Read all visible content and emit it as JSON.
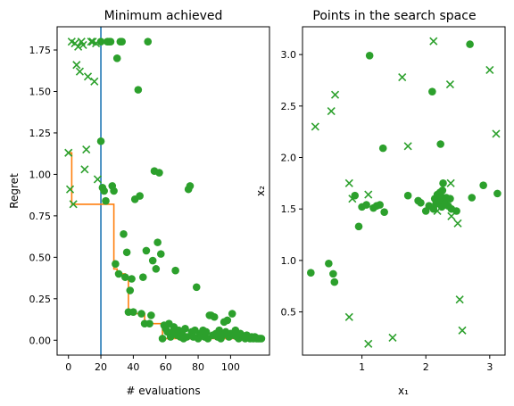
{
  "chart_data": [
    {
      "type": "scatter",
      "title": "Minimum achieved",
      "xlabel": "# evaluations",
      "ylabel": "Regret",
      "xlim": [
        -7,
        124
      ],
      "ylim": [
        -0.09,
        1.89
      ],
      "xticks": [
        0,
        20,
        40,
        60,
        80,
        100
      ],
      "yticks": [
        0.0,
        0.25,
        0.5,
        0.75,
        1.0,
        1.25,
        1.5,
        1.75
      ],
      "ytick_labels": [
        "0.00",
        "0.25",
        "0.50",
        "0.75",
        "1.00",
        "1.25",
        "1.50",
        "1.75"
      ],
      "vline_x": 20,
      "vline_color": "#1f77b4",
      "point_color": "#2ca02c",
      "line_color": "#ff7f0e",
      "min_curve": [
        [
          0,
          1.13
        ],
        [
          2,
          1.13
        ],
        [
          2,
          0.82
        ],
        [
          28,
          0.82
        ],
        [
          28,
          0.43
        ],
        [
          30,
          0.43
        ],
        [
          30,
          0.4
        ],
        [
          35,
          0.4
        ],
        [
          35,
          0.37
        ],
        [
          37,
          0.37
        ],
        [
          37,
          0.16
        ],
        [
          47,
          0.16
        ],
        [
          47,
          0.1
        ],
        [
          58,
          0.1
        ],
        [
          58,
          0.01
        ],
        [
          120,
          0.01
        ]
      ],
      "cross_points": [
        [
          0,
          1.13
        ],
        [
          1,
          0.91
        ],
        [
          2,
          1.8
        ],
        [
          3,
          0.82
        ],
        [
          4,
          1.79
        ],
        [
          5,
          1.66
        ],
        [
          6,
          1.77
        ],
        [
          7,
          1.62
        ],
        [
          8,
          1.8
        ],
        [
          9,
          1.78
        ],
        [
          10,
          1.03
        ],
        [
          11,
          1.15
        ],
        [
          12,
          1.59
        ],
        [
          14,
          1.8
        ],
        [
          15,
          1.8
        ],
        [
          16,
          1.56
        ],
        [
          17,
          1.79
        ],
        [
          18,
          0.97
        ]
      ],
      "dot_points": [
        [
          20,
          1.8
        ],
        [
          20,
          1.2
        ],
        [
          21,
          0.92
        ],
        [
          22,
          0.9
        ],
        [
          23,
          0.84
        ],
        [
          24,
          1.8
        ],
        [
          25,
          1.8
        ],
        [
          26,
          1.8
        ],
        [
          27,
          0.93
        ],
        [
          28,
          0.9
        ],
        [
          29,
          0.46
        ],
        [
          30,
          1.7
        ],
        [
          31,
          0.4
        ],
        [
          32,
          1.8
        ],
        [
          33,
          1.8
        ],
        [
          34,
          0.64
        ],
        [
          35,
          0.38
        ],
        [
          36,
          0.53
        ],
        [
          37,
          0.17
        ],
        [
          38,
          0.3
        ],
        [
          39,
          0.37
        ],
        [
          40,
          0.17
        ],
        [
          41,
          0.85
        ],
        [
          43,
          1.51
        ],
        [
          44,
          0.87
        ],
        [
          45,
          0.16
        ],
        [
          46,
          0.38
        ],
        [
          47,
          0.1
        ],
        [
          48,
          0.54
        ],
        [
          49,
          1.8
        ],
        [
          50,
          0.1
        ],
        [
          51,
          0.15
        ],
        [
          52,
          0.48
        ],
        [
          53,
          1.02
        ],
        [
          54,
          0.43
        ],
        [
          55,
          0.59
        ],
        [
          56,
          1.01
        ],
        [
          57,
          0.52
        ],
        [
          58,
          0.01
        ],
        [
          59,
          0.09
        ],
        [
          60,
          0.07
        ],
        [
          61,
          0.05
        ],
        [
          62,
          0.1
        ],
        [
          63,
          0.02
        ],
        [
          64,
          0.05
        ],
        [
          65,
          0.08
        ],
        [
          66,
          0.42
        ],
        [
          67,
          0.03
        ],
        [
          68,
          0.06
        ],
        [
          69,
          0.02
        ],
        [
          70,
          0.04
        ],
        [
          71,
          0.01
        ],
        [
          72,
          0.07
        ],
        [
          73,
          0.02
        ],
        [
          74,
          0.91
        ],
        [
          75,
          0.93
        ],
        [
          76,
          0.05
        ],
        [
          77,
          0.02
        ],
        [
          78,
          0.06
        ],
        [
          79,
          0.32
        ],
        [
          80,
          0.01
        ],
        [
          81,
          0.04
        ],
        [
          82,
          0.03
        ],
        [
          83,
          0.06
        ],
        [
          84,
          0.02
        ],
        [
          85,
          0.05
        ],
        [
          86,
          0.01
        ],
        [
          87,
          0.15
        ],
        [
          88,
          0.15
        ],
        [
          89,
          0.03
        ],
        [
          90,
          0.14
        ],
        [
          91,
          0.04
        ],
        [
          92,
          0.02
        ],
        [
          93,
          0.06
        ],
        [
          94,
          0.01
        ],
        [
          95,
          0.03
        ],
        [
          96,
          0.11
        ],
        [
          97,
          0.05
        ],
        [
          98,
          0.12
        ],
        [
          99,
          0.02
        ],
        [
          100,
          0.04
        ],
        [
          101,
          0.16
        ],
        [
          102,
          0.03
        ],
        [
          103,
          0.06
        ],
        [
          104,
          0.02
        ],
        [
          105,
          0.01
        ],
        [
          106,
          0.04
        ],
        [
          107,
          0.03
        ],
        [
          108,
          0.02
        ],
        [
          109,
          0.01
        ],
        [
          110,
          0.03
        ],
        [
          111,
          0.02
        ],
        [
          112,
          0.01
        ],
        [
          113,
          0.02
        ],
        [
          114,
          0.01
        ],
        [
          115,
          0.02
        ],
        [
          116,
          0.01
        ],
        [
          117,
          0.01
        ],
        [
          118,
          0.01
        ],
        [
          119,
          0.01
        ]
      ]
    },
    {
      "type": "scatter",
      "title": "Points in the search space",
      "xlabel": "x₁",
      "ylabel": "x₂",
      "xlim": [
        0.07,
        3.24
      ],
      "ylim": [
        0.08,
        3.27
      ],
      "xticks": [
        1,
        2,
        3
      ],
      "yticks": [
        0.5,
        1.0,
        1.5,
        2.0,
        2.5,
        3.0
      ],
      "ytick_labels": [
        "0.5",
        "1.0",
        "1.5",
        "2.0",
        "2.5",
        "3.0"
      ],
      "point_color": "#2ca02c",
      "cross_points": [
        [
          0.27,
          2.3
        ],
        [
          0.52,
          2.45
        ],
        [
          0.58,
          2.61
        ],
        [
          0.8,
          0.45
        ],
        [
          0.8,
          1.75
        ],
        [
          0.85,
          1.6
        ],
        [
          1.1,
          0.19
        ],
        [
          1.1,
          1.64
        ],
        [
          1.48,
          0.25
        ],
        [
          1.63,
          2.78
        ],
        [
          1.72,
          2.11
        ],
        [
          2.12,
          3.13
        ],
        [
          2.18,
          1.48
        ],
        [
          2.38,
          2.71
        ],
        [
          2.39,
          1.75
        ],
        [
          2.4,
          1.43
        ],
        [
          2.5,
          1.36
        ],
        [
          2.53,
          0.62
        ],
        [
          2.57,
          0.32
        ],
        [
          3.0,
          2.85
        ],
        [
          3.1,
          2.23
        ]
      ],
      "dot_points": [
        [
          0.2,
          0.88
        ],
        [
          0.48,
          0.97
        ],
        [
          0.55,
          0.87
        ],
        [
          0.57,
          0.79
        ],
        [
          0.89,
          1.63
        ],
        [
          0.95,
          1.33
        ],
        [
          1.0,
          1.52
        ],
        [
          1.07,
          1.54
        ],
        [
          1.12,
          2.99
        ],
        [
          1.18,
          1.51
        ],
        [
          1.23,
          1.53
        ],
        [
          1.28,
          1.54
        ],
        [
          1.33,
          2.09
        ],
        [
          1.35,
          1.47
        ],
        [
          1.72,
          1.63
        ],
        [
          1.88,
          1.58
        ],
        [
          1.92,
          1.56
        ],
        [
          2.0,
          1.48
        ],
        [
          2.05,
          1.53
        ],
        [
          2.1,
          2.64
        ],
        [
          2.12,
          1.5
        ],
        [
          2.14,
          1.6
        ],
        [
          2.16,
          1.55
        ],
        [
          2.18,
          1.64
        ],
        [
          2.2,
          1.58
        ],
        [
          2.22,
          1.66
        ],
        [
          2.23,
          2.13
        ],
        [
          2.24,
          1.62
        ],
        [
          2.25,
          1.52
        ],
        [
          2.26,
          1.68
        ],
        [
          2.27,
          1.75
        ],
        [
          2.28,
          1.57
        ],
        [
          2.3,
          1.55
        ],
        [
          2.32,
          1.61
        ],
        [
          2.35,
          1.53
        ],
        [
          2.38,
          1.6
        ],
        [
          2.4,
          1.5
        ],
        [
          2.48,
          1.48
        ],
        [
          2.69,
          3.1
        ],
        [
          2.72,
          1.61
        ],
        [
          2.9,
          1.73
        ],
        [
          3.12,
          1.65
        ]
      ]
    }
  ]
}
